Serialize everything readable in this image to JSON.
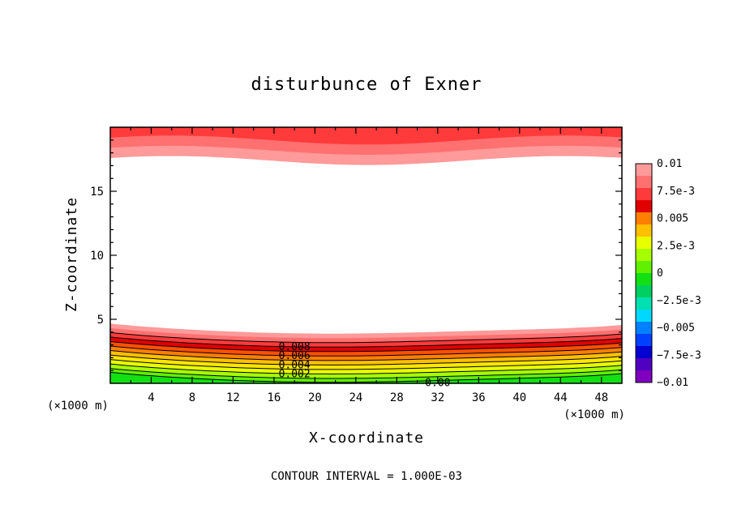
{
  "chart_data": {
    "type": "contour",
    "title": "disturbunce of Exner",
    "xlabel": "X-coordinate",
    "ylabel": "Z-coordinate",
    "x_unit": "(×1000 m)",
    "y_unit": "(×1000 m)",
    "xlim": [
      0,
      50
    ],
    "ylim": [
      0,
      20
    ],
    "x_ticks": [
      "4",
      "8",
      "12",
      "16",
      "20",
      "24",
      "28",
      "32",
      "36",
      "40",
      "44",
      "48"
    ],
    "y_ticks": [
      "5",
      "10",
      "15"
    ],
    "contour_interval_text": "CONTOUR INTERVAL = 1.000E-03",
    "colorbar": {
      "labels": [
        "0.01",
        "7.5e-3",
        "0.005",
        "2.5e-3",
        "0",
        "−2.5e-3",
        "−0.005",
        "−7.5e-3",
        "−0.01"
      ],
      "colors": [
        "#ff9a9a",
        "#ff7070",
        "#ff3a3a",
        "#e00000",
        "#ff7f00",
        "#ffc000",
        "#e8ff00",
        "#a6ff00",
        "#60f000",
        "#12e012",
        "#00d060",
        "#00e0b0",
        "#00d8ff",
        "#0080ff",
        "#0040ff",
        "#0000d0",
        "#5000c0",
        "#8000c0"
      ]
    },
    "contour_labels": [
      "0.008",
      "0.006",
      "0.004",
      "0.002",
      "0.00"
    ],
    "top_bands": [
      {
        "base_z": 17.4,
        "color": "#ff9a9a"
      },
      {
        "base_z": 18.2,
        "color": "#ff7070"
      },
      {
        "base_z": 19.0,
        "color": "#ff3a3a"
      }
    ],
    "bottom_bands": [
      {
        "top_z": 4.0,
        "color": "#ff9a9a"
      },
      {
        "top_z": 3.65,
        "color": "#ff7070"
      },
      {
        "top_z": 3.3,
        "color": "#ff3a3a"
      },
      {
        "top_z": 2.95,
        "color": "#e00000"
      },
      {
        "top_z": 2.6,
        "color": "#ff5000"
      },
      {
        "top_z": 2.25,
        "color": "#ff7f00"
      },
      {
        "top_z": 1.9,
        "color": "#ffc000"
      },
      {
        "top_z": 1.55,
        "color": "#ffe600"
      },
      {
        "top_z": 1.2,
        "color": "#e8ff00"
      },
      {
        "top_z": 0.85,
        "color": "#a6ff00"
      },
      {
        "top_z": 0.5,
        "color": "#60f000"
      },
      {
        "top_z": 0.2,
        "color": "#12e012"
      }
    ]
  }
}
